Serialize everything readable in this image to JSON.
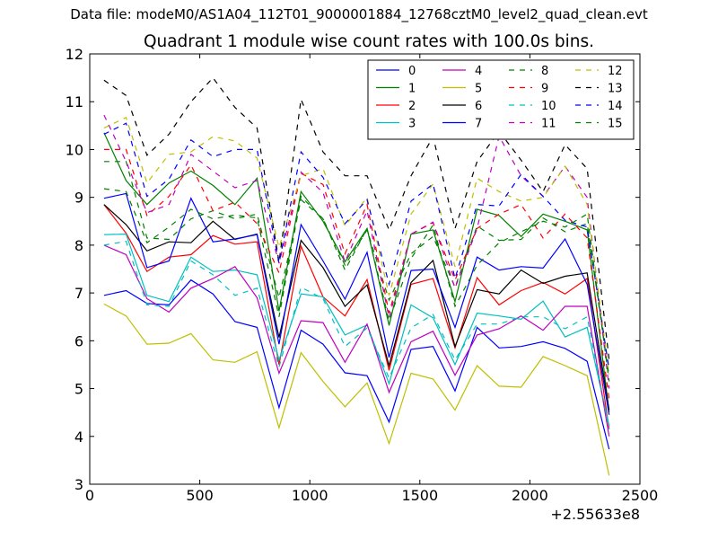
{
  "header": {
    "data_file_label": "Data file: modeM0/AS1A04_112T01_9000001884_12768cztM0_level2_quad_clean.evt"
  },
  "chart_data": {
    "type": "line",
    "title": "Quadrant 1 module wise count rates with 100.0s bins.",
    "xlabel": "",
    "ylabel": "",
    "x_offset_label": "+2.55633e8",
    "xlim": [
      0,
      2500
    ],
    "ylim": [
      3,
      12
    ],
    "x_ticks": [
      "0",
      "500",
      "1000",
      "1500",
      "2000",
      "2500"
    ],
    "y_ticks": [
      "3",
      "4",
      "5",
      "6",
      "7",
      "8",
      "9",
      "10",
      "11",
      "12"
    ],
    "grid": false,
    "legend_position": "top-right",
    "legend_columns": 4,
    "x": [
      65,
      165,
      260,
      360,
      460,
      560,
      660,
      760,
      860,
      960,
      1060,
      1160,
      1260,
      1360,
      1460,
      1560,
      1660,
      1760,
      1860,
      1960,
      2060,
      2160,
      2260,
      2360
    ],
    "series": [
      {
        "name": "0",
        "color": "#0000ff",
        "dash": "solid",
        "values": [
          6.95,
          7.05,
          6.78,
          6.75,
          7.27,
          6.98,
          6.4,
          6.28,
          4.6,
          6.22,
          5.93,
          5.33,
          5.27,
          4.3,
          5.82,
          5.88,
          4.95,
          6.28,
          5.85,
          5.88,
          5.98,
          5.84,
          5.57,
          3.73
        ]
      },
      {
        "name": "1",
        "color": "#008000",
        "dash": "solid",
        "values": [
          10.35,
          9.35,
          8.85,
          9.3,
          9.55,
          9.25,
          8.85,
          9.4,
          6.62,
          9.12,
          8.5,
          7.65,
          8.35,
          6.32,
          8.23,
          8.32,
          6.82,
          8.75,
          8.62,
          8.18,
          8.65,
          8.5,
          8.32,
          4.5
        ]
      },
      {
        "name": "2",
        "color": "#ff0000",
        "dash": "solid",
        "values": [
          8.85,
          8.25,
          7.45,
          7.75,
          7.8,
          8.2,
          8.02,
          8.07,
          5.5,
          7.98,
          6.92,
          6.52,
          7.28,
          5.38,
          7.18,
          7.3,
          5.85,
          7.32,
          6.75,
          7.05,
          7.22,
          6.98,
          7.3,
          4.15
        ]
      },
      {
        "name": "3",
        "color": "#00bfbf",
        "dash": "solid",
        "values": [
          8.22,
          8.23,
          6.95,
          6.82,
          7.75,
          7.45,
          7.48,
          7.38,
          5.6,
          6.98,
          6.92,
          6.12,
          6.33,
          5.1,
          6.75,
          6.48,
          5.5,
          6.58,
          6.52,
          6.45,
          6.83,
          6.08,
          6.28,
          4.22
        ]
      },
      {
        "name": "4",
        "color": "#bf00bf",
        "dash": "solid",
        "values": [
          8.0,
          7.8,
          6.88,
          6.6,
          7.1,
          7.3,
          7.55,
          6.9,
          5.32,
          6.42,
          6.38,
          5.55,
          6.35,
          4.92,
          5.98,
          6.2,
          5.28,
          6.12,
          6.25,
          6.52,
          6.22,
          6.72,
          6.72,
          4.0
        ]
      },
      {
        "name": "5",
        "color": "#bfbf00",
        "dash": "solid",
        "values": [
          6.77,
          6.52,
          5.93,
          5.95,
          6.15,
          5.6,
          5.55,
          5.77,
          4.18,
          5.75,
          5.15,
          4.62,
          5.12,
          3.85,
          5.32,
          5.2,
          4.55,
          5.48,
          5.05,
          5.03,
          5.67,
          5.48,
          5.27,
          3.18
        ]
      },
      {
        "name": "6",
        "color": "#000000",
        "dash": "solid",
        "values": [
          8.85,
          8.43,
          7.88,
          8.07,
          8.05,
          8.5,
          8.12,
          8.23,
          6.07,
          8.1,
          7.53,
          6.72,
          7.17,
          5.48,
          7.22,
          7.68,
          5.88,
          7.07,
          6.98,
          7.48,
          7.2,
          7.35,
          7.42,
          4.55
        ]
      },
      {
        "name": "7",
        "color": "#0000ff",
        "dash": "solid",
        "values": [
          8.98,
          9.08,
          7.53,
          7.67,
          8.98,
          8.07,
          8.13,
          8.22,
          5.93,
          8.43,
          7.67,
          6.87,
          7.85,
          5.65,
          7.47,
          7.5,
          6.28,
          7.75,
          7.48,
          7.55,
          7.52,
          8.13,
          7.18,
          4.45
        ]
      },
      {
        "name": "8",
        "color": "#008000",
        "dash": "dashed",
        "values": [
          9.75,
          9.75,
          8.15,
          8.12,
          8.55,
          8.72,
          8.55,
          8.65,
          6.9,
          8.95,
          8.55,
          7.58,
          8.32,
          6.85,
          7.82,
          8.18,
          7.12,
          8.4,
          8.1,
          8.12,
          8.57,
          8.28,
          8.45,
          5.25
        ]
      },
      {
        "name": "9",
        "color": "#ff0000",
        "dash": "dashed",
        "values": [
          10.0,
          10.0,
          8.62,
          9.02,
          9.68,
          8.72,
          8.9,
          8.45,
          7.42,
          9.5,
          9.27,
          7.82,
          8.85,
          6.58,
          8.23,
          8.47,
          7.27,
          8.35,
          8.65,
          8.85,
          8.15,
          8.65,
          8.15,
          4.78
        ]
      },
      {
        "name": "10",
        "color": "#00bfbf",
        "dash": "dashed",
        "values": [
          8.0,
          8.08,
          6.75,
          6.72,
          7.67,
          7.38,
          6.95,
          7.1,
          5.45,
          7.12,
          6.88,
          5.88,
          6.27,
          5.22,
          6.27,
          6.55,
          5.6,
          6.35,
          6.35,
          6.5,
          6.5,
          6.25,
          6.5,
          4.15
        ]
      },
      {
        "name": "11",
        "color": "#bf00bf",
        "dash": "dashed",
        "values": [
          10.72,
          9.75,
          8.68,
          8.85,
          9.9,
          9.55,
          9.2,
          9.35,
          7.62,
          9.53,
          9.1,
          7.65,
          8.72,
          6.48,
          8.23,
          8.48,
          7.1,
          8.35,
          10.28,
          9.45,
          9.02,
          9.65,
          9.0,
          5.0
        ]
      },
      {
        "name": "12",
        "color": "#bfbf00",
        "dash": "dashed",
        "values": [
          10.45,
          10.67,
          9.3,
          9.9,
          9.95,
          10.27,
          10.18,
          9.82,
          7.95,
          9.45,
          9.6,
          8.4,
          9.0,
          6.95,
          8.65,
          9.28,
          7.55,
          9.4,
          9.12,
          8.92,
          9.0,
          9.65,
          8.85,
          5.3
        ]
      },
      {
        "name": "13",
        "color": "#000000",
        "dash": "dashed",
        "values": [
          11.45,
          11.13,
          9.88,
          10.32,
          11.0,
          11.5,
          10.88,
          10.45,
          7.65,
          11.05,
          9.95,
          9.45,
          9.45,
          8.32,
          9.45,
          10.27,
          8.35,
          9.75,
          10.38,
          9.78,
          9.12,
          10.1,
          9.6,
          5.6
        ]
      },
      {
        "name": "14",
        "color": "#0000ff",
        "dash": "dashed",
        "values": [
          10.32,
          10.55,
          9.02,
          9.38,
          10.2,
          9.85,
          10.0,
          10.0,
          7.62,
          9.95,
          9.42,
          8.45,
          8.95,
          7.18,
          8.92,
          9.28,
          7.3,
          8.85,
          8.82,
          9.48,
          9.02,
          8.52,
          8.38,
          5.4
        ]
      },
      {
        "name": "15",
        "color": "#008000",
        "dash": "dashed",
        "values": [
          9.18,
          9.12,
          8.05,
          8.38,
          8.75,
          8.55,
          8.63,
          8.57,
          6.5,
          9.02,
          8.55,
          7.48,
          8.35,
          6.42,
          7.72,
          8.42,
          6.72,
          7.58,
          8.05,
          8.28,
          8.5,
          8.38,
          8.65,
          5.15
        ]
      }
    ]
  }
}
